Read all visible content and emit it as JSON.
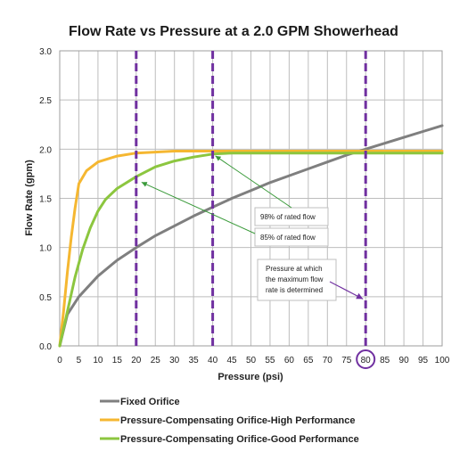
{
  "chart_data": {
    "type": "line",
    "title": "Flow Rate vs Pressure at a 2.0 GPM Showerhead",
    "xlabel": "Pressure (psi)",
    "ylabel": "Flow Rate (gpm)",
    "xlim": [
      0,
      100
    ],
    "ylim": [
      0,
      3.0
    ],
    "x_ticks": [
      "0",
      "5",
      "10",
      "15",
      "20",
      "25",
      "30",
      "35",
      "40",
      "45",
      "50",
      "55",
      "60",
      "65",
      "70",
      "75",
      "80",
      "85",
      "90",
      "95",
      "100"
    ],
    "y_ticks": [
      "0.0",
      "0.5",
      "1.0",
      "1.5",
      "2.0",
      "2.5",
      "3.0"
    ],
    "grid": true,
    "legend_position": "bottom-left",
    "series": [
      {
        "name": "Fixed Orifice",
        "color": "#7f7f7f",
        "x": [
          0,
          2,
          5,
          10,
          15,
          20,
          25,
          30,
          35,
          40,
          45,
          50,
          55,
          60,
          65,
          70,
          75,
          80,
          85,
          90,
          95,
          100
        ],
        "y": [
          0,
          0.32,
          0.5,
          0.71,
          0.87,
          1.0,
          1.12,
          1.22,
          1.32,
          1.41,
          1.5,
          1.58,
          1.66,
          1.73,
          1.8,
          1.87,
          1.94,
          2.0,
          2.06,
          2.12,
          2.18,
          2.24
        ]
      },
      {
        "name": "Pressure-Compensating Orifice-High Performance",
        "color": "#f5b731",
        "x": [
          0,
          1,
          2,
          3,
          4,
          5,
          7,
          10,
          15,
          20,
          25,
          30,
          40,
          60,
          80,
          100
        ],
        "y": [
          0,
          0.35,
          0.75,
          1.1,
          1.4,
          1.65,
          1.78,
          1.87,
          1.93,
          1.96,
          1.97,
          1.98,
          1.98,
          1.98,
          1.98,
          1.98
        ]
      },
      {
        "name": "Pressure-Compensating Orifice-Good Performance",
        "color": "#8cc63f",
        "x": [
          0,
          2,
          4,
          6,
          8,
          10,
          12,
          15,
          20,
          25,
          30,
          35,
          40,
          45,
          50,
          60,
          80,
          100
        ],
        "y": [
          0,
          0.35,
          0.7,
          0.98,
          1.2,
          1.37,
          1.49,
          1.6,
          1.72,
          1.82,
          1.88,
          1.92,
          1.95,
          1.96,
          1.96,
          1.96,
          1.96,
          1.96
        ]
      }
    ],
    "reference_lines": [
      {
        "x": 20,
        "color": "#7030a0"
      },
      {
        "x": 40,
        "color": "#7030a0"
      },
      {
        "x": 80,
        "color": "#7030a0"
      }
    ],
    "annotations": [
      {
        "text": "98% of rated flow",
        "points_to": [
          40,
          1.95
        ],
        "color": "#3a9a3a"
      },
      {
        "text": "85% of rated flow",
        "points_to": [
          20,
          1.7
        ],
        "color": "#3a9a3a"
      },
      {
        "text_lines": [
          "Pressure at which",
          "the maximum flow",
          "rate  is determined"
        ],
        "points_to": [
          80,
          0.45
        ],
        "color": "#7030a0"
      }
    ],
    "highlighted_tick": "80"
  }
}
